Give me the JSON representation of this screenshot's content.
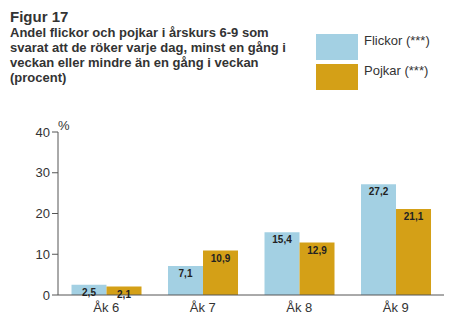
{
  "chart_data": {
    "type": "bar",
    "title": "Figur 17",
    "subtitle": "Andel flickor och pojkar i årskurs 6-9 som svarat att de röker varje dag, minst en gång i veckan eller mindre än en gång i veckan (procent)",
    "y_label": "%",
    "categories": [
      "Åk 6",
      "Åk 7",
      "Åk 8",
      "Åk 9"
    ],
    "series": [
      {
        "name": "Flickor (***)",
        "color": "#a3d0e3",
        "values": [
          2.5,
          7.1,
          15.4,
          27.2
        ],
        "value_labels": [
          "2,5",
          "7,1",
          "15,4",
          "27,2"
        ]
      },
      {
        "name": "Pojkar (***)",
        "color": "#d4a017",
        "values": [
          2.1,
          10.9,
          12.9,
          21.1
        ],
        "value_labels": [
          "2,1",
          "10,9",
          "12,9",
          "21,1"
        ]
      }
    ],
    "ylim": [
      0,
      40
    ],
    "yticks": [
      0,
      10,
      20,
      30,
      40
    ],
    "grid": false,
    "legend": "top-right",
    "data_labels": true
  }
}
